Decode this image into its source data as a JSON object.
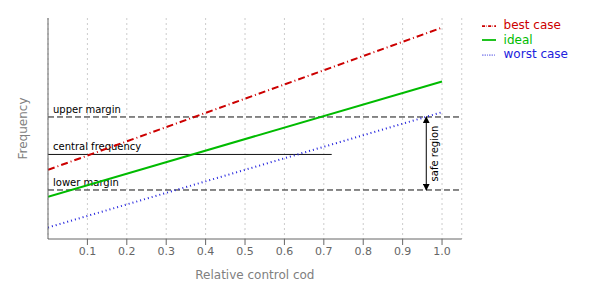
{
  "chart_data": {
    "type": "line",
    "xlabel": "Relative control cod",
    "ylabel": "Frequency",
    "x": [
      0,
      1
    ],
    "series": [
      {
        "name": "  ideal",
        "color": "#00bb00",
        "line_style": "solid",
        "values": [
          0.22,
          0.82
        ]
      },
      {
        "name": "  worst case",
        "color": "#2222dd",
        "line_style": "dotted",
        "values": [
          0.06,
          0.66
        ]
      },
      {
        "name": "  best case",
        "color": "#cc0000",
        "line_style": "dashdot",
        "values": [
          0.36,
          1.1
        ]
      }
    ],
    "xlim": [
      0.0,
      1.05
    ],
    "ylim": [
      0.0,
      1.15
    ],
    "xticks": [
      0.1,
      0.2,
      0.3,
      0.4,
      0.5,
      0.6,
      0.7,
      0.8,
      0.9,
      {
        "value": 1.0,
        "label": "1.0"
      }
    ],
    "yticks": [],
    "tick_labels": "x",
    "grid": "x",
    "legend": "right",
    "reference_lines": [
      {
        "label": "upper margin",
        "y": 0.635,
        "color": "#111111",
        "line_style": "dashed"
      },
      {
        "label": "central frequency",
        "y": 0.44,
        "x_range": [
          0.0,
          0.72
        ],
        "color": "#111111",
        "line_style": "solid"
      },
      {
        "label": "lower margin",
        "y": 0.255,
        "color": "#111111",
        "line_style": "dashed"
      }
    ],
    "annotations": [
      {
        "text": "safe region",
        "x": 0.96,
        "y_from": 0.255,
        "y_to": 0.635
      }
    ]
  }
}
